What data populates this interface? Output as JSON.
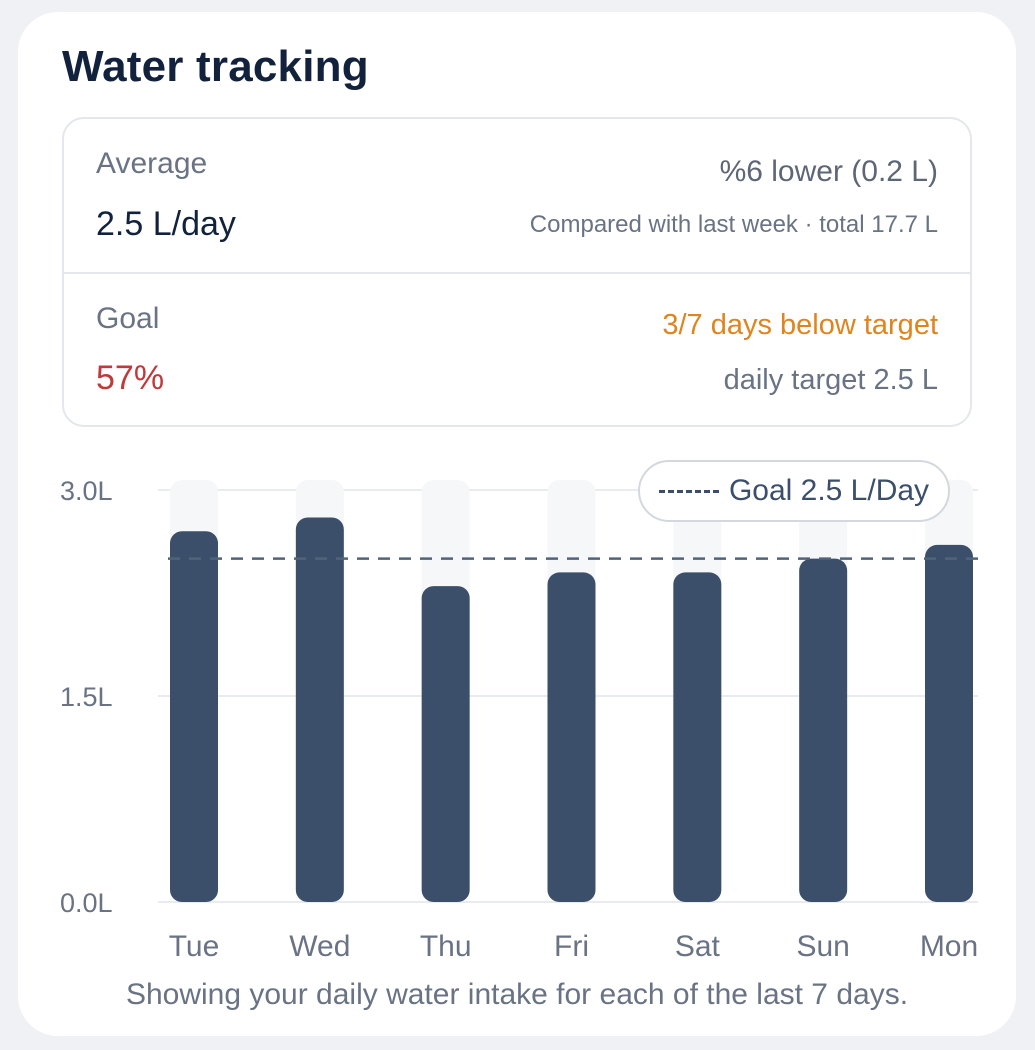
{
  "card": {
    "title": "Water tracking"
  },
  "stats": {
    "average_label": "Average",
    "average_value": "2.5 L/day",
    "change_text": "%6 lower (0.2 L)",
    "compare_text": "Compared with last week · total 17.7 L",
    "goal_label": "Goal",
    "goal_value": "57%",
    "below_target_text": "3/7 days below target",
    "daily_target_text": "daily target 2.5 L"
  },
  "colors": {
    "bar": "#3b4f6a",
    "bar_background": "#f6f7f9",
    "goal_percent": "#c0393b",
    "below_target": "#e0841e",
    "title": "#12223d",
    "muted_text": "#697384",
    "gridline": "#e8ebef"
  },
  "chart_data": {
    "type": "bar",
    "categories": [
      "Tue",
      "Wed",
      "Thu",
      "Fri",
      "Sat",
      "Sun",
      "Mon"
    ],
    "values": [
      2.7,
      2.8,
      2.3,
      2.4,
      2.4,
      2.5,
      2.6
    ],
    "ylim": [
      0,
      3.0
    ],
    "yticks": [
      0.0,
      1.5,
      3.0
    ],
    "ytick_labels": [
      "0.0L",
      "1.5L",
      "3.0L"
    ],
    "goal_line": 2.5,
    "legend": "Goal 2.5 L/Day",
    "legend_position": "top-right",
    "grid": true,
    "caption": "Showing your daily water intake for each of the last 7 days."
  }
}
